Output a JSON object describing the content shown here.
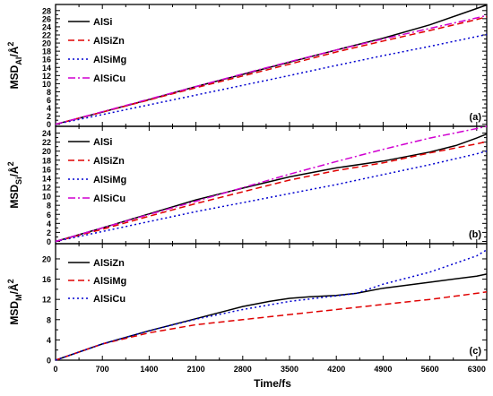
{
  "chart_data": {
    "type": "line",
    "xlabel": "Time/fs",
    "xlim": [
      0,
      6450
    ],
    "xticks": [
      0,
      700,
      1400,
      2100,
      2800,
      3500,
      4200,
      4900,
      5600,
      6300
    ],
    "panels": [
      {
        "tag": "(a)",
        "ylabel_main": "MSD",
        "ylabel_sub": "Al",
        "ylabel_tail": "/Å",
        "ylabel_sup": "2",
        "ylim": [
          -0.5,
          29.5
        ],
        "yticks": [
          0,
          2,
          4,
          6,
          8,
          10,
          12,
          14,
          16,
          18,
          20,
          22,
          24,
          26,
          28
        ],
        "series": [
          {
            "name": "AlSi",
            "color": "#000000",
            "dash": "",
            "x": [
              0,
              700,
              1400,
              2100,
              2800,
              3500,
              4200,
              4900,
              5600,
              6300,
              6450
            ],
            "y": [
              0,
              3.0,
              6.1,
              9.3,
              12.3,
              15.3,
              18.3,
              21.2,
              24.5,
              28.5,
              29.4
            ]
          },
          {
            "name": "AlSiZn",
            "color": "#e00000",
            "dash": "7,4",
            "x": [
              0,
              700,
              1400,
              2100,
              2800,
              3500,
              4200,
              4900,
              5600,
              6300,
              6450
            ],
            "y": [
              0,
              3.0,
              6.0,
              9.0,
              11.9,
              14.8,
              17.8,
              20.5,
              23.1,
              25.8,
              26.5
            ]
          },
          {
            "name": "AlSiMg",
            "color": "#0000d0",
            "dash": "2,3",
            "x": [
              0,
              700,
              1400,
              2100,
              2800,
              3500,
              4200,
              4900,
              5600,
              6300,
              6450
            ],
            "y": [
              0,
              2.4,
              4.8,
              7.2,
              9.6,
              12.0,
              14.5,
              16.9,
              19.2,
              21.6,
              22.1
            ]
          },
          {
            "name": "AlSiCu",
            "color": "#d000d0",
            "dash": "8,3,2,3",
            "x": [
              0,
              700,
              1400,
              2100,
              2800,
              3500,
              4200,
              4900,
              5600,
              6300,
              6450
            ],
            "y": [
              0,
              3.1,
              6.2,
              9.3,
              12.4,
              15.4,
              18.3,
              21.0,
              23.6,
              26.2,
              26.8
            ]
          }
        ]
      },
      {
        "tag": "(b)",
        "ylabel_main": "MSD",
        "ylabel_sub": "Si",
        "ylabel_tail": "/Å",
        "ylabel_sup": "2",
        "ylim": [
          -0.5,
          25.5
        ],
        "yticks": [
          0,
          2,
          4,
          6,
          8,
          10,
          12,
          14,
          16,
          18,
          20,
          22,
          24
        ],
        "series": [
          {
            "name": "AlSi",
            "color": "#000000",
            "dash": "",
            "x": [
              0,
              700,
              1400,
              2100,
              2800,
              3500,
              4200,
              4900,
              5600,
              6000,
              6300,
              6450
            ],
            "y": [
              0,
              3.0,
              6.1,
              9.2,
              11.8,
              14.3,
              16.3,
              17.8,
              19.8,
              21.3,
              22.9,
              23.8
            ]
          },
          {
            "name": "AlSiZn",
            "color": "#e00000",
            "dash": "7,4",
            "x": [
              0,
              700,
              1400,
              2100,
              2800,
              3500,
              4200,
              4900,
              5600,
              6300,
              6450
            ],
            "y": [
              0,
              2.7,
              5.6,
              8.4,
              11.0,
              13.6,
              15.7,
              17.4,
              19.6,
              21.6,
              22.1
            ]
          },
          {
            "name": "AlSiMg",
            "color": "#0000d0",
            "dash": "2,3",
            "x": [
              0,
              700,
              1400,
              2100,
              2800,
              3500,
              4200,
              4900,
              5600,
              6300,
              6450
            ],
            "y": [
              0,
              2.2,
              4.4,
              6.6,
              8.6,
              10.6,
              12.6,
              14.8,
              17.0,
              19.4,
              20.0
            ]
          },
          {
            "name": "AlSiCu",
            "color": "#d000d0",
            "dash": "8,3,2,3",
            "x": [
              0,
              700,
              1400,
              2100,
              2800,
              3500,
              4200,
              4900,
              5600,
              6300,
              6450
            ],
            "y": [
              0,
              3.0,
              6.0,
              8.9,
              11.9,
              14.9,
              17.7,
              20.4,
              22.9,
              25.0,
              25.5
            ]
          }
        ]
      },
      {
        "tag": "(c)",
        "ylabel_main": "MSD",
        "ylabel_sub": "M",
        "ylabel_tail": "/Å",
        "ylabel_sup": "2",
        "ylim": [
          0,
          23
        ],
        "yticks": [
          0,
          4,
          8,
          12,
          16,
          20
        ],
        "series": [
          {
            "name": "AlSiZn",
            "color": "#000000",
            "dash": "",
            "x": [
              0,
              700,
              1400,
              2100,
              2800,
              3200,
              3500,
              3800,
              4200,
              4500,
              4900,
              5600,
              6300,
              6450
            ],
            "y": [
              0,
              3.2,
              5.8,
              8.2,
              10.6,
              11.6,
              12.2,
              12.5,
              12.8,
              13.2,
              14.2,
              15.4,
              16.6,
              17.0
            ]
          },
          {
            "name": "AlSiMg",
            "color": "#e00000",
            "dash": "7,4",
            "x": [
              0,
              700,
              1400,
              2100,
              2800,
              3500,
              4200,
              4900,
              5600,
              6300,
              6450
            ],
            "y": [
              0,
              3.2,
              5.4,
              7.0,
              8.0,
              9.0,
              10.0,
              11.0,
              12.0,
              13.2,
              13.5
            ]
          },
          {
            "name": "AlSiCu",
            "color": "#0000d0",
            "dash": "2,3",
            "x": [
              0,
              700,
              1400,
              2100,
              2800,
              3500,
              4200,
              4500,
              4900,
              5600,
              6300,
              6450
            ],
            "y": [
              0,
              3.2,
              5.8,
              8.1,
              10.0,
              11.6,
              12.7,
              13.2,
              15.0,
              17.4,
              20.6,
              21.8
            ]
          }
        ]
      }
    ]
  }
}
